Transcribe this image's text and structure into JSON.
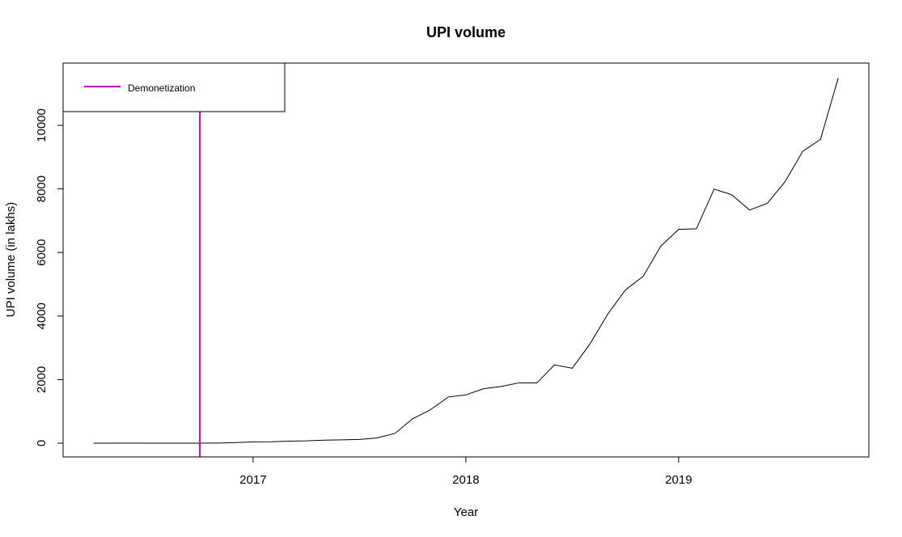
{
  "chart_data": {
    "type": "line",
    "title": "UPI volume",
    "x_label": "Year",
    "y_label": "UPI volume (in lakhs)",
    "x": [
      2016.25,
      2016.3333,
      2016.4167,
      2016.5,
      2016.5833,
      2016.6667,
      2016.75,
      2016.8333,
      2016.9167,
      2017,
      2017.0833,
      2017.1667,
      2017.25,
      2017.3333,
      2017.4167,
      2017.5,
      2017.5833,
      2017.6667,
      2017.75,
      2017.8333,
      2017.9167,
      2018,
      2018.0833,
      2018.1667,
      2018.25,
      2018.3333,
      2018.4167,
      2018.5,
      2018.5833,
      2018.6667,
      2018.75,
      2018.8333,
      2018.9167,
      2019,
      2019.0833,
      2019.1667,
      2019.25,
      2019.3333,
      2019.4167,
      2019.5,
      2019.5833,
      2019.6667,
      2019.75
    ],
    "values": [
      0,
      0,
      3,
      1,
      1,
      1,
      1,
      3,
      20,
      42,
      44,
      64,
      72,
      94,
      103,
      116,
      166,
      309,
      768,
      1050,
      1452,
      1519,
      1713,
      1783,
      1900,
      1894,
      2465,
      2357,
      3122,
      4059,
      4820,
      5249,
      6202,
      6728,
      6745,
      7994,
      7816,
      7336,
      7545,
      8226,
      9182,
      9559,
      11487
    ],
    "color": "#000000",
    "vline": {
      "name": "Demonetization",
      "x": 2016.75,
      "color": "#c000c0"
    },
    "legend": "topleft",
    "xlim": [
      2016.107,
      2019.894
    ],
    "xticks": [
      2017,
      2018,
      2019
    ],
    "ylim": [
      -433,
      11959
    ],
    "yticks": [
      0,
      2000,
      4000,
      6000,
      8000,
      10000
    ]
  }
}
